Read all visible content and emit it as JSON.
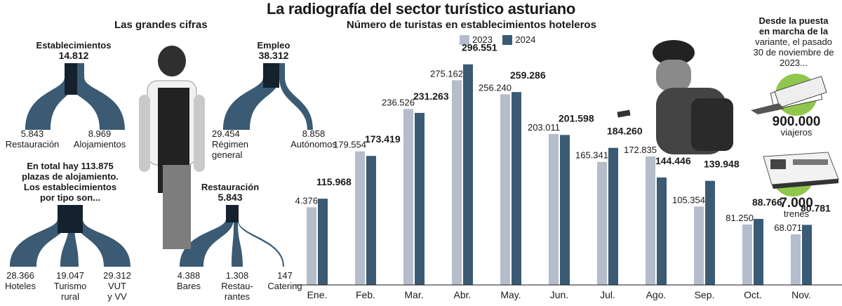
{
  "title": "La radiografía del sector turístico asturiano",
  "left_section": {
    "subtitle": "Las grandes cifras",
    "establecimientos": {
      "label": "Establecimientos",
      "value": "14.812",
      "left_value": "5.843",
      "left_label": "Restauración",
      "right_value": "8.969",
      "right_label": "Alojamientos"
    },
    "empleo": {
      "label": "Empleo",
      "value": "38.312",
      "left_value": "29.454",
      "left_label_1": "Régimen",
      "left_label_2": "general",
      "right_value": "8.858",
      "right_label": "Autónomos"
    },
    "plazas_text": [
      "En total hay 113.875",
      "plazas de alojamiento.",
      "Los establecimientos",
      "por tipo son..."
    ],
    "tipos": {
      "a_value": "28.366",
      "a_label": "Hoteles",
      "b_value": "19.047",
      "b_label_1": "Turismo",
      "b_label_2": "rural",
      "c_value": "29.312",
      "c_label_1": "VUT",
      "c_label_2": "y VV"
    },
    "restauracion": {
      "label": "Restauración",
      "value": "5.843",
      "a_value": "4.388",
      "a_label": "Bares",
      "b_value": "1.308",
      "b_label_1": "Restau-",
      "b_label_2": "rantes",
      "c_value": "147",
      "c_label": "Catering"
    }
  },
  "right_panel": {
    "intro": [
      "Desde la puesta",
      "en marcha de la",
      "variante, el pasado",
      "30 de noviembre de",
      "2023..."
    ],
    "intro_bold_lines": [
      0,
      1
    ],
    "intro_bold_word": "variante,",
    "viajeros_value": "900.000",
    "viajeros_label": "viajeros",
    "trenes_value": "7.000",
    "trenes_label": "trenes"
  },
  "colors": {
    "y2023": "#b5bccb",
    "y2024": "#3b5a73",
    "flow": "#3b5a73",
    "flow_dark": "#15222e",
    "green": "#8fc64c"
  },
  "chart_data": {
    "type": "bar",
    "title": "Número de turistas en establecimientos hoteleros",
    "categories": [
      "Ene.",
      "Feb.",
      "Mar.",
      "Abr.",
      "May.",
      "Jun.",
      "Jul.",
      "Ago.",
      "Sep.",
      "Oct.",
      "Nov."
    ],
    "series": [
      {
        "name": "2023",
        "values": [
          104376,
          179554,
          236526,
          275162,
          256240,
          203011,
          165341,
          172835,
          105354,
          81250,
          68071
        ],
        "labels": [
          "104.376",
          "179.554",
          "236.526",
          "275.162",
          "256.240",
          "203.011",
          "165.341",
          "172.835",
          "105.354",
          "81.250",
          "68.071"
        ]
      },
      {
        "name": "2024",
        "values": [
          115968,
          173419,
          231263,
          296551,
          259286,
          201598,
          184260,
          144446,
          139948,
          88766,
          80781
        ],
        "labels": [
          "115.968",
          "173.419",
          "231.263",
          "296.551",
          "259.286",
          "201.598",
          "184.260",
          "144.446",
          "139.948",
          "88.766",
          "80.781"
        ]
      }
    ],
    "legend_position": "top",
    "grid": false
  }
}
